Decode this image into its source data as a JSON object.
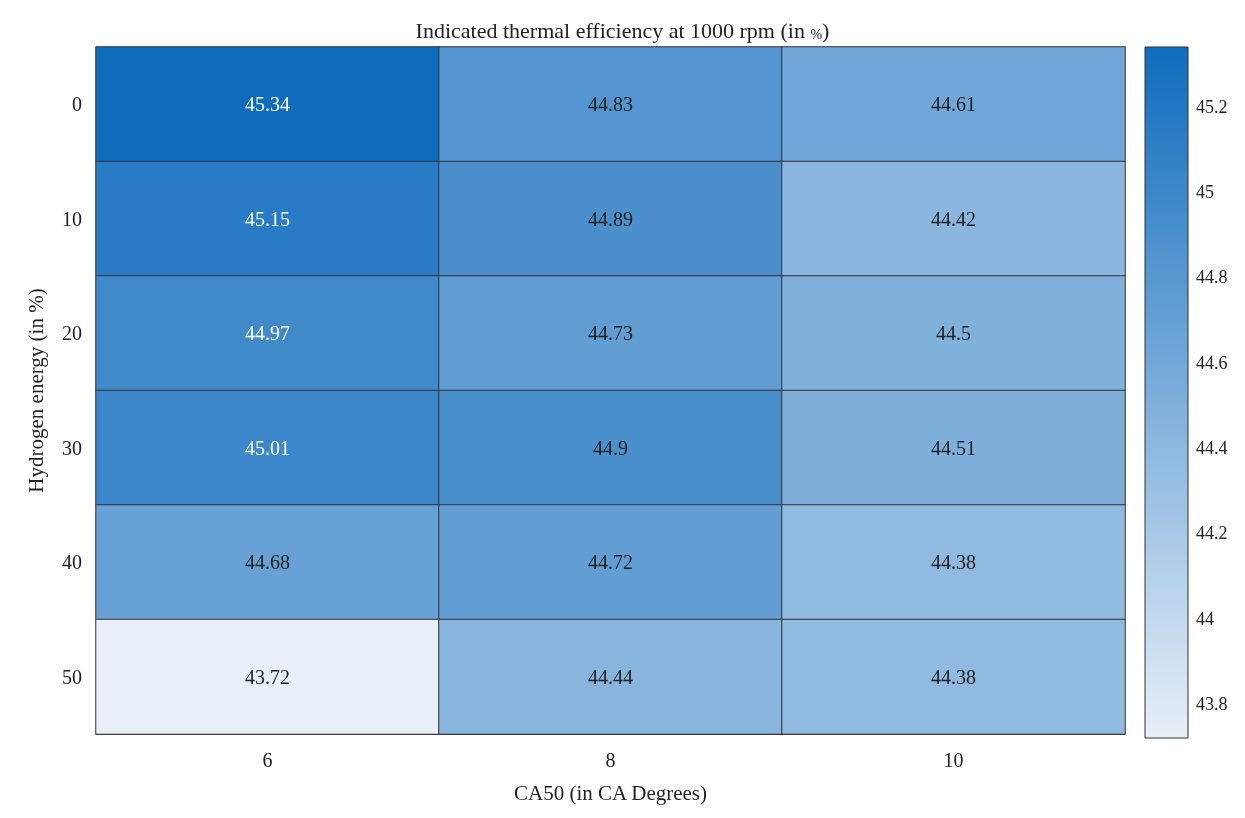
{
  "chart_data": {
    "type": "heatmap",
    "title": "Indicated thermal efficiency at 1000 rpm (in $_{%}$)",
    "xlabel": "CA50 (in CA Degrees)",
    "ylabel": "Hydrogen energy (in %)",
    "categories": [
      "6",
      "8",
      "10"
    ],
    "y_categories": [
      "0",
      "10",
      "20",
      "30",
      "40",
      "50"
    ],
    "cells": [
      [
        45.34,
        44.83,
        44.61
      ],
      [
        45.15,
        44.89,
        44.42
      ],
      [
        44.97,
        44.73,
        44.5
      ],
      [
        45.01,
        44.9,
        44.51
      ],
      [
        44.68,
        44.72,
        44.38
      ],
      [
        43.72,
        44.44,
        44.38
      ]
    ],
    "data_labels": true,
    "clim": [
      43.72,
      45.34
    ],
    "cticks": [
      43.8,
      44,
      44.2,
      44.4,
      44.6,
      44.8,
      45,
      45.2
    ]
  }
}
